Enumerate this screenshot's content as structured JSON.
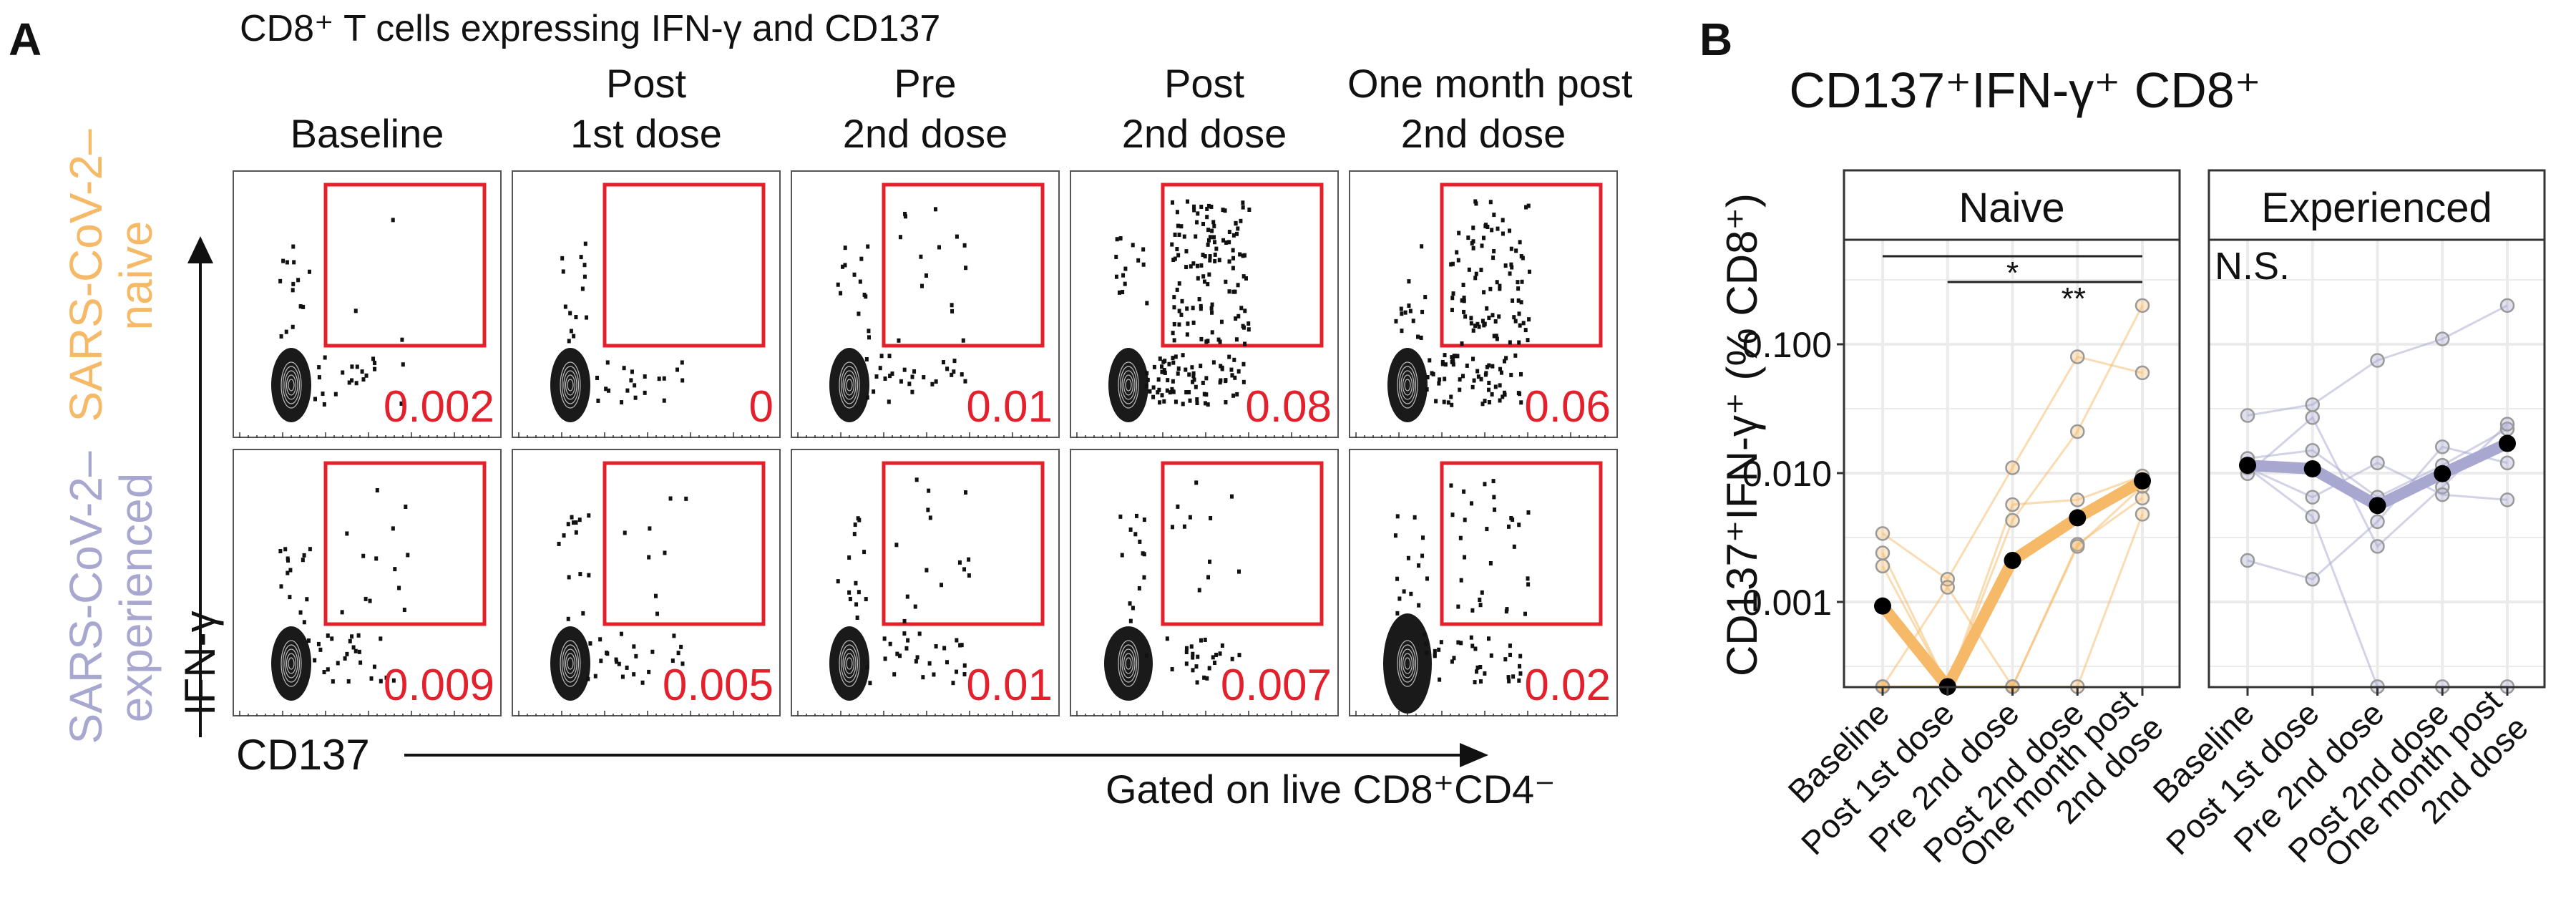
{
  "panel_a": {
    "letter": "A",
    "title": "CD8⁺ T cells expressing IFN-γ and CD137",
    "columns": [
      {
        "line1": "",
        "line2": "Baseline"
      },
      {
        "line1": "Post",
        "line2": "1st dose"
      },
      {
        "line1": "Pre",
        "line2": "2nd dose"
      },
      {
        "line1": "Post",
        "line2": "2nd dose"
      },
      {
        "line1": "One month post",
        "line2": "2nd dose"
      }
    ],
    "rows": [
      {
        "line1": "SARS-CoV-2–",
        "line2": "naive",
        "color": "#F5B967"
      },
      {
        "line1": "SARS-CoV-2–",
        "line2": "experienced",
        "color": "#A8A7CF"
      }
    ],
    "y_axis_label": "IFN-γ",
    "x_axis_label": "CD137",
    "gating_note": "Gated on live CD8⁺CD4⁻",
    "gate_color": "#E3202B",
    "gate_values": [
      [
        "0.002",
        "0",
        "0.01",
        "0.08",
        "0.06"
      ],
      [
        "0.009",
        "0.005",
        "0.01",
        "0.007",
        "0.02"
      ]
    ]
  },
  "panel_b": {
    "letter": "B",
    "title": "CD137⁺IFN-γ⁺ CD8⁺"
  },
  "chart_data": {
    "type": "line",
    "title": "CD137⁺IFN-γ⁺ CD8⁺",
    "ylabel": "CD137⁺IFN-γ⁺ (% CD8⁺)",
    "xlabel": "",
    "y_scale": "log10",
    "y_ticks": [
      0.001,
      0.01,
      0.1
    ],
    "y_tick_labels": [
      "0.001",
      "0.010",
      "0.100"
    ],
    "ylim": [
      0.00022,
      0.6
    ],
    "grid": true,
    "categories": [
      "Baseline",
      "Post 1st dose",
      "Pre 2nd dose",
      "Post 2nd dose",
      "One month post\n2nd dose"
    ],
    "facets": [
      {
        "name": "Naive",
        "color": "#F5B967",
        "annotation": "",
        "significance": [
          {
            "from": 0,
            "to": 4,
            "label": "*"
          },
          {
            "from": 1,
            "to": 4,
            "label": "**"
          }
        ],
        "mean": [
          0.00093,
          0.00022,
          0.0021,
          0.0045,
          0.0087
        ],
        "subjects": [
          [
            0.0034,
            0.0015,
            0.011,
            0.08,
            0.06
          ],
          [
            0.0024,
            0.00022,
            0.0057,
            0.0062,
            0.0095
          ],
          [
            0.0019,
            0.00022,
            0.0043,
            0.021,
            0.2
          ],
          [
            0.00022,
            0.0013,
            0.00022,
            0.0028,
            0.0064
          ],
          [
            0.00022,
            0.00022,
            0.00022,
            0.0027,
            0.0079
          ],
          [
            0.00022,
            0.00022,
            0.00022,
            0.00022,
            0.0048
          ]
        ]
      },
      {
        "name": "Experienced",
        "color": "#A8A7CF",
        "annotation": "N.S.",
        "significance": [],
        "mean": [
          0.0115,
          0.0108,
          0.0056,
          0.0099,
          0.017
        ],
        "subjects": [
          [
            0.028,
            0.034,
            0.075,
            0.11,
            0.2
          ],
          [
            0.013,
            0.015,
            0.0065,
            0.0115,
            0.022
          ],
          [
            0.0099,
            0.027,
            0.0027,
            0.0078,
            0.024
          ],
          [
            0.011,
            0.0065,
            0.012,
            0.0068,
            0.0062
          ],
          [
            0.0021,
            0.0015,
            0.0042,
            0.016,
            0.012
          ],
          [
            0.011,
            0.0046,
            0.00022,
            0.00022,
            0.00022
          ]
        ]
      }
    ]
  }
}
